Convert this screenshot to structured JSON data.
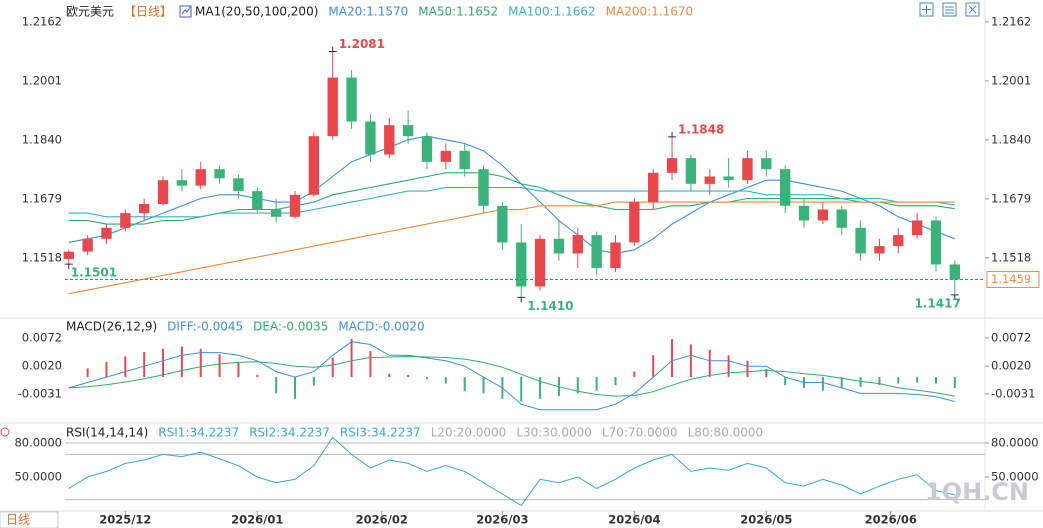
{
  "header": {
    "symbol": "欧元美元",
    "period": "【日线】"
  },
  "chart_data": [
    {
      "type": "candlestick",
      "title": "MA1(20,50,100,200)",
      "xlim": [
        -0.2,
        48.6
      ],
      "ylim": [
        1.1362,
        1.2208
      ],
      "yticks": [
        1.2162,
        1.2001,
        {
          "value": 1.184,
          "label": "1.1840"
        },
        1.1679,
        1.1518
      ],
      "up_color": "#e8474b",
      "down_color": "#3ab27a",
      "ohlc": [
        [
          1.1515,
          1.154,
          1.1501,
          1.1535
        ],
        [
          1.1535,
          1.158,
          1.1525,
          1.157
        ],
        [
          1.157,
          1.161,
          1.1555,
          1.16
        ],
        [
          1.16,
          1.165,
          1.159,
          1.164
        ],
        [
          1.164,
          1.168,
          1.162,
          1.1665
        ],
        [
          1.1665,
          1.174,
          1.166,
          1.173
        ],
        [
          1.173,
          1.176,
          1.17,
          1.1715
        ],
        [
          1.1715,
          1.178,
          1.1705,
          1.176
        ],
        [
          1.176,
          1.177,
          1.172,
          1.1735
        ],
        [
          1.1735,
          1.1745,
          1.168,
          1.17
        ],
        [
          1.17,
          1.171,
          1.164,
          1.165
        ],
        [
          1.165,
          1.168,
          1.1615,
          1.163
        ],
        [
          1.163,
          1.17,
          1.1625,
          1.169
        ],
        [
          1.169,
          1.186,
          1.1685,
          1.185
        ],
        [
          1.185,
          1.2081,
          1.184,
          1.201
        ],
        [
          1.201,
          1.203,
          1.187,
          1.189
        ],
        [
          1.189,
          1.191,
          1.178,
          1.18
        ],
        [
          1.18,
          1.19,
          1.179,
          1.188
        ],
        [
          1.188,
          1.192,
          1.183,
          1.185
        ],
        [
          1.185,
          1.186,
          1.176,
          1.178
        ],
        [
          1.178,
          1.183,
          1.176,
          1.181
        ],
        [
          1.181,
          1.183,
          1.174,
          1.176
        ],
        [
          1.176,
          1.177,
          1.164,
          1.166
        ],
        [
          1.166,
          1.167,
          1.154,
          1.156
        ],
        [
          1.156,
          1.161,
          1.141,
          1.144
        ],
        [
          1.144,
          1.158,
          1.143,
          1.157
        ],
        [
          1.157,
          1.162,
          1.151,
          1.153
        ],
        [
          1.153,
          1.16,
          1.149,
          1.158
        ],
        [
          1.158,
          1.159,
          1.147,
          1.149
        ],
        [
          1.149,
          1.158,
          1.148,
          1.156
        ],
        [
          1.156,
          1.168,
          1.155,
          1.167
        ],
        [
          1.167,
          1.176,
          1.165,
          1.175
        ],
        [
          1.175,
          1.1848,
          1.173,
          1.179
        ],
        [
          1.179,
          1.18,
          1.17,
          1.172
        ],
        [
          1.172,
          1.176,
          1.169,
          1.174
        ],
        [
          1.174,
          1.179,
          1.171,
          1.173
        ],
        [
          1.173,
          1.181,
          1.172,
          1.179
        ],
        [
          1.179,
          1.181,
          1.174,
          1.176
        ],
        [
          1.176,
          1.177,
          1.164,
          1.166
        ],
        [
          1.166,
          1.168,
          1.16,
          1.162
        ],
        [
          1.162,
          1.167,
          1.161,
          1.165
        ],
        [
          1.165,
          1.166,
          1.158,
          1.16
        ],
        [
          1.16,
          1.162,
          1.151,
          1.153
        ],
        [
          1.153,
          1.157,
          1.151,
          1.155
        ],
        [
          1.155,
          1.16,
          1.153,
          1.158
        ],
        [
          1.158,
          1.164,
          1.157,
          1.162
        ],
        [
          1.162,
          1.163,
          1.148,
          1.15
        ],
        [
          1.15,
          1.151,
          1.1417,
          1.1459
        ]
      ],
      "series": [
        {
          "name": "MA20:1.1570",
          "color": "#3d8fe0",
          "values": [
            1.156,
            1.157,
            1.158,
            1.16,
            1.162,
            1.164,
            1.166,
            1.168,
            1.169,
            1.169,
            1.168,
            1.167,
            1.167,
            1.17,
            1.174,
            1.178,
            1.18,
            1.182,
            1.184,
            1.185,
            1.184,
            1.183,
            1.181,
            1.177,
            1.172,
            1.167,
            1.162,
            1.158,
            1.154,
            1.153,
            1.154,
            1.157,
            1.161,
            1.164,
            1.167,
            1.169,
            1.171,
            1.173,
            1.173,
            1.172,
            1.171,
            1.17,
            1.168,
            1.166,
            1.163,
            1.161,
            1.159,
            1.157
          ]
        },
        {
          "name": "MA50:1.1652",
          "color": "#2fae6a",
          "values": [
            1.162,
            1.162,
            1.161,
            1.161,
            1.161,
            1.162,
            1.162,
            1.163,
            1.164,
            1.165,
            1.165,
            1.165,
            1.166,
            1.167,
            1.169,
            1.17,
            1.171,
            1.172,
            1.173,
            1.174,
            1.175,
            1.175,
            1.175,
            1.174,
            1.172,
            1.171,
            1.169,
            1.167,
            1.166,
            1.165,
            1.165,
            1.165,
            1.166,
            1.166,
            1.167,
            1.167,
            1.168,
            1.168,
            1.168,
            1.168,
            1.168,
            1.168,
            1.167,
            1.167,
            1.166,
            1.166,
            1.166,
            1.1652
          ]
        },
        {
          "name": "MA100:1.1662",
          "color": "#35b3c9",
          "values": [
            1.164,
            1.164,
            1.163,
            1.163,
            1.163,
            1.163,
            1.163,
            1.163,
            1.164,
            1.164,
            1.164,
            1.164,
            1.164,
            1.165,
            1.166,
            1.167,
            1.168,
            1.169,
            1.17,
            1.17,
            1.171,
            1.171,
            1.171,
            1.171,
            1.171,
            1.17,
            1.17,
            1.17,
            1.17,
            1.17,
            1.17,
            1.17,
            1.17,
            1.17,
            1.17,
            1.17,
            1.17,
            1.169,
            1.169,
            1.169,
            1.169,
            1.168,
            1.168,
            1.168,
            1.167,
            1.167,
            1.167,
            1.1662
          ]
        },
        {
          "name": "MA200:1.1670",
          "color": "#f08a3a",
          "values": [
            1.142,
            1.143,
            1.144,
            1.145,
            1.146,
            1.147,
            1.148,
            1.149,
            1.15,
            1.151,
            1.152,
            1.153,
            1.154,
            1.155,
            1.156,
            1.157,
            1.158,
            1.159,
            1.16,
            1.161,
            1.162,
            1.163,
            1.164,
            1.165,
            1.165,
            1.166,
            1.166,
            1.166,
            1.166,
            1.167,
            1.167,
            1.167,
            1.167,
            1.167,
            1.167,
            1.167,
            1.167,
            1.167,
            1.167,
            1.167,
            1.167,
            1.167,
            1.167,
            1.167,
            1.167,
            1.167,
            1.167,
            1.167
          ]
        }
      ],
      "annotations": [
        {
          "index": 14,
          "value": 1.2081,
          "position": "above"
        },
        {
          "index": 32,
          "value": 1.1848,
          "position": "above"
        },
        {
          "index": 0,
          "value": 1.1501,
          "position": "below"
        },
        {
          "index": 24,
          "value": 1.141,
          "label": "1.1410",
          "position": "below"
        },
        {
          "index": 47,
          "value": 1.1417,
          "position": "below"
        }
      ],
      "last_price": 1.1459,
      "last_price_color": "#f08a3a"
    },
    {
      "type": "macd",
      "title": "MACD(26,12,9)",
      "ylim": [
        -0.0079,
        0.0105
      ],
      "yticks": [
        0.0072,
        {
          "value": 0.002,
          "label": "0.0020"
        },
        -0.0031
      ],
      "up_color": "#e8474b",
      "down_color": "#3ab27a",
      "histogram": {
        "name": "MACD:-0.0020",
        "color": "#3d8fe0",
        "values": [
          0,
          0.0016,
          0.0028,
          0.0038,
          0.0046,
          0.0052,
          0.0056,
          0.0052,
          0.0042,
          0.0026,
          0.0004,
          -0.003,
          -0.004,
          -0.0016,
          0.0036,
          0.007,
          0.0048,
          0.0006,
          0.0004,
          -0.0004,
          -0.0012,
          -0.0026,
          -0.003,
          -0.004,
          -0.0045,
          -0.004,
          -0.0035,
          -0.003,
          -0.0025,
          -0.0015,
          0.001,
          0.004,
          0.007,
          0.006,
          0.005,
          0.004,
          0.003,
          0.0015,
          -0.0015,
          -0.002,
          -0.0025,
          -0.002,
          -0.0018,
          -0.0015,
          -0.0012,
          -0.001,
          -0.0012,
          -0.002
        ]
      },
      "series": [
        {
          "name": "DIFF:-0.0045",
          "color": "#3d8fe0",
          "values": [
            -0.002,
            -0.001,
            0,
            0.001,
            0.002,
            0.003,
            0.004,
            0.0045,
            0.0045,
            0.004,
            0.003,
            0.001,
            0,
            0.001,
            0.004,
            0.0065,
            0.006,
            0.004,
            0.004,
            0.0035,
            0.003,
            0.002,
            0,
            -0.002,
            -0.005,
            -0.006,
            -0.006,
            -0.006,
            -0.006,
            -0.005,
            -0.003,
            0,
            0.003,
            0.004,
            0.003,
            0.003,
            0.002,
            0.002,
            0,
            -0.001,
            -0.001,
            -0.002,
            -0.003,
            -0.003,
            -0.003,
            -0.0032,
            -0.0036,
            -0.0045
          ]
        },
        {
          "name": "DEA:-0.0035",
          "color": "#2fae6a",
          "values": [
            -0.002,
            -0.0018,
            -0.0014,
            -0.0009,
            -0.0003,
            0.0004,
            0.0012,
            0.0019,
            0.0024,
            0.0027,
            0.0028,
            0.0025,
            0.002,
            0.0018,
            0.0022,
            0.003,
            0.0036,
            0.0037,
            0.0038,
            0.0037,
            0.0036,
            0.0033,
            0.0027,
            0.0018,
            0.0005,
            -0.0008,
            -0.0018,
            -0.0026,
            -0.0032,
            -0.0035,
            -0.0034,
            -0.0027,
            -0.0015,
            -0.0004,
            0.0003,
            0.0008,
            0.001,
            0.0012,
            0.001,
            0.0006,
            0.0003,
            -0.0002,
            -0.0008,
            -0.0012,
            -0.002,
            -0.0024,
            -0.0029,
            -0.0035
          ]
        }
      ]
    },
    {
      "type": "rsi",
      "title": "RSI(14,14,14)",
      "ylim": [
        20.9,
        95.9
      ],
      "yticks": [
        {
          "value": 80,
          "label": "80.0000"
        },
        {
          "value": 50,
          "label": "50.0000"
        }
      ],
      "xticks": [
        {
          "value": 3,
          "label": "2025/12"
        },
        {
          "value": 10,
          "label": "2026/01"
        },
        {
          "value": 16.6,
          "label": "2026/02"
        },
        {
          "value": 23,
          "label": "2026/03"
        },
        {
          "value": 30,
          "label": "2026/04"
        },
        {
          "value": 37,
          "label": "2026/05"
        },
        {
          "value": 43.6,
          "label": "2026/06"
        }
      ],
      "series": [
        {
          "name": "RSI1:34.2237",
          "color": "#35a8d6",
          "values": [
            40,
            50,
            55,
            62,
            65,
            70,
            68,
            72,
            66,
            60,
            50,
            45,
            48,
            60,
            85,
            70,
            58,
            65,
            62,
            55,
            60,
            55,
            45,
            35,
            25,
            48,
            45,
            50,
            40,
            48,
            58,
            65,
            70,
            55,
            58,
            56,
            62,
            58,
            45,
            42,
            48,
            43,
            35,
            42,
            48,
            52,
            38,
            34.2237
          ]
        },
        {
          "name": "RSI2:34.2237",
          "color": "#35a8d6"
        },
        {
          "name": "RSI3:34.2237",
          "color": "#35a8d6"
        }
      ],
      "levels": [
        {
          "name": "L20:20.0000",
          "value": 20
        },
        {
          "name": "L30:30.0000",
          "value": 30
        },
        {
          "name": "L70:70.0000",
          "value": 70
        },
        {
          "name": "L80:80.0000",
          "value": 80
        }
      ],
      "level_color": "#bbbbbb"
    }
  ],
  "footer": {
    "button": "日线",
    "watermark": "1QH.CN"
  }
}
